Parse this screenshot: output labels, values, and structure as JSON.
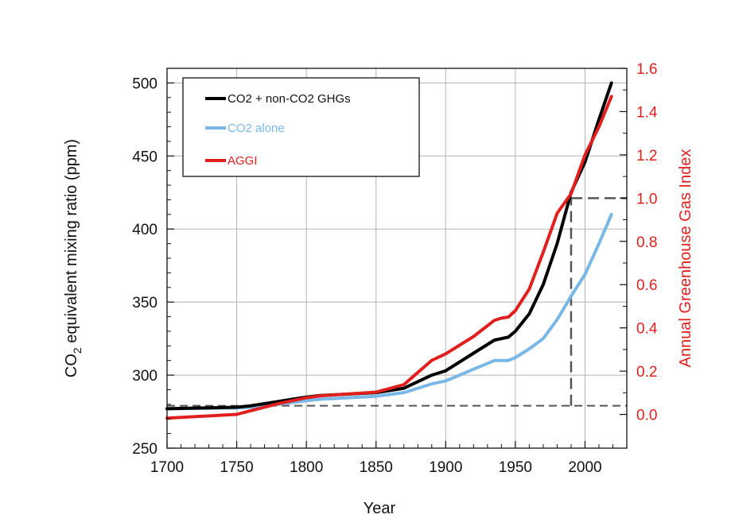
{
  "chart_data": {
    "type": "line",
    "xlabel": "Year",
    "ylabel_left": {
      "pre": "CO",
      "sub": "2",
      "post": " equivalent mixing ratio (ppm)"
    },
    "ylabel_right": "Annual Greenhouse Gas Index",
    "xlim": [
      1700,
      2030
    ],
    "ylim_left": [
      250,
      510
    ],
    "ylim_right": [
      -0.156,
      1.6
    ],
    "x_ticks": [
      1700,
      1750,
      1800,
      1850,
      1900,
      1950,
      2000
    ],
    "y_left_ticks": [
      250,
      300,
      350,
      400,
      450,
      500
    ],
    "y_right_ticks": [
      "0.0",
      "0.2",
      "0.4",
      "0.6",
      "0.8",
      "1.0",
      "1.2",
      "1.4",
      "1.6"
    ],
    "grid": true,
    "legend_position": "top-left",
    "reference_lines": {
      "baseline_ppm": 279,
      "aggi_reference": {
        "year": 1990,
        "aggi": 1.0
      }
    },
    "colors": {
      "black_series": "#000000",
      "blue_series": "#79b8e6",
      "red_series": "#e0201f",
      "right_axis": "#e0201f",
      "grid": "#b3b3b3",
      "reference": "#555555"
    },
    "series": [
      {
        "name": "CO2 + non-CO2 GHGs",
        "axis": "left",
        "x": [
          1700,
          1750,
          1760,
          1780,
          1800,
          1810,
          1850,
          1870,
          1890,
          1900,
          1920,
          1935,
          1945,
          1950,
          1960,
          1970,
          1980,
          1990,
          2000,
          2010,
          2019
        ],
        "y": [
          277,
          278,
          279,
          282,
          285,
          286,
          288,
          291,
          300,
          303,
          315,
          324,
          326,
          330,
          342,
          362,
          390,
          425,
          446,
          475,
          500
        ]
      },
      {
        "name": "CO2 alone",
        "axis": "left",
        "x": [
          1700,
          1750,
          1760,
          1780,
          1800,
          1810,
          1850,
          1870,
          1890,
          1900,
          1920,
          1935,
          1945,
          1950,
          1960,
          1970,
          1980,
          1990,
          2000,
          2010,
          2019
        ],
        "y": [
          277,
          277.5,
          278,
          280,
          282.5,
          283.5,
          285.5,
          288,
          294,
          296,
          304,
          310,
          310,
          312,
          318,
          325,
          338,
          354,
          369,
          390,
          410
        ]
      },
      {
        "name": "AGGI",
        "axis": "right",
        "x": [
          1700,
          1750,
          1760,
          1780,
          1800,
          1810,
          1850,
          1870,
          1890,
          1900,
          1920,
          1935,
          1940,
          1945,
          1950,
          1960,
          1970,
          1980,
          1990,
          2000,
          2010,
          2019
        ],
        "y": [
          -0.017,
          0.0,
          0.017,
          0.05,
          0.077,
          0.086,
          0.103,
          0.138,
          0.25,
          0.28,
          0.36,
          0.435,
          0.445,
          0.45,
          0.48,
          0.58,
          0.75,
          0.93,
          1.02,
          1.2,
          1.33,
          1.47
        ]
      }
    ]
  }
}
